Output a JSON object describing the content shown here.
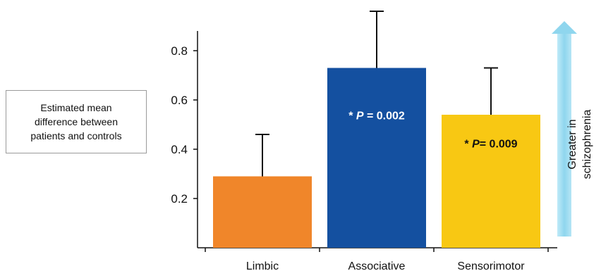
{
  "y_label": [
    "Estimated mean",
    "difference between",
    "patients and controls"
  ],
  "arrow_caption": [
    "Greater in",
    "schizophrenia"
  ],
  "chart_data": {
    "type": "bar",
    "categories": [
      "Limbic",
      "Associative",
      "Sensorimotor"
    ],
    "values": [
      0.29,
      0.73,
      0.54
    ],
    "error_upper": [
      0.46,
      0.96,
      0.73
    ],
    "colors": [
      "#f0862a",
      "#1450a0",
      "#f8c813"
    ],
    "annotations": [
      "",
      "* P = 0.002",
      "* P= 0.009"
    ],
    "annotation_colors": [
      "#ffffff",
      "#ffffff",
      "#111111"
    ],
    "yticks": [
      0.2,
      0.4,
      0.6,
      0.8
    ],
    "ytick_labels": [
      "0.2",
      "0.4",
      "0.6",
      "0.8"
    ],
    "ylim": [
      0.0,
      0.93
    ],
    "arrow_color": "#8fd6ee"
  }
}
